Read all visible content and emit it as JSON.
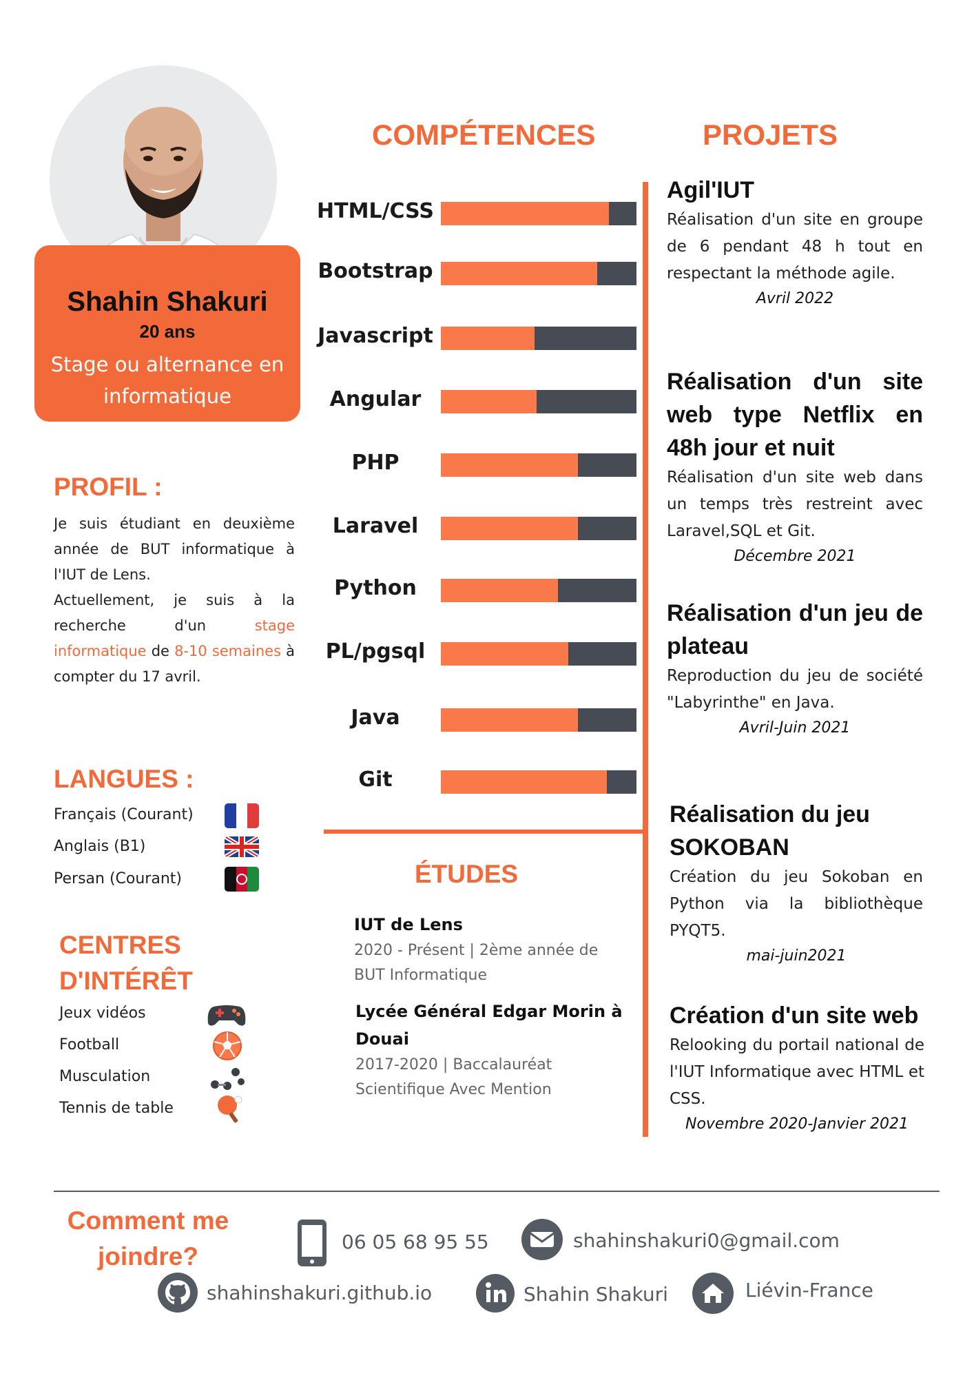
{
  "identity": {
    "name": "Shahin Shakuri",
    "age": "20 ans",
    "goal": "Stage ou alternance en informatique"
  },
  "profil": {
    "title": "PROFIL :",
    "text_1": "Je suis étudiant en deuxième année de BUT informatique à l'IUT de Lens.",
    "text_2a": "Actuellement, je suis à la recherche d'un ",
    "text_2b": "stage informatique",
    "text_2c": " de ",
    "text_2d": "8-10 semaines",
    "text_2e": " à compter du 17 avril."
  },
  "langues": {
    "title": "LANGUES :",
    "items": [
      {
        "label": "Français (Courant)",
        "flag": "france-flag-icon"
      },
      {
        "label": "Anglais (B1)",
        "flag": "uk-flag-icon"
      },
      {
        "label": "Persan (Courant)",
        "flag": "afghanistan-flag-icon"
      }
    ]
  },
  "interets": {
    "title_line1": "CENTRES",
    "title_line2": "D'INTÉRÊT",
    "items": [
      {
        "label": "Jeux vidéos",
        "icon": "gamepad-icon"
      },
      {
        "label": "Football",
        "icon": "football-icon"
      },
      {
        "label": "Musculation",
        "icon": "dumbbell-icon"
      },
      {
        "label": "Tennis de table",
        "icon": "ping-pong-icon"
      }
    ]
  },
  "competences": {
    "title": "COMPÉTENCES",
    "skills": [
      {
        "name": "HTML/CSS",
        "level": 0.86
      },
      {
        "name": "Bootstrap",
        "level": 0.8
      },
      {
        "name": "Javascript",
        "level": 0.48
      },
      {
        "name": "Angular",
        "level": 0.49
      },
      {
        "name": "PHP",
        "level": 0.7
      },
      {
        "name": "Laravel",
        "level": 0.7
      },
      {
        "name": "Python",
        "level": 0.6
      },
      {
        "name": "PL/pgsql",
        "level": 0.65
      },
      {
        "name": "Java",
        "level": 0.7
      },
      {
        "name": "Git",
        "level": 0.85
      }
    ]
  },
  "etudes": {
    "title": "ÉTUDES",
    "items": [
      {
        "school": "IUT de Lens",
        "detail": "2020 - Présent | 2ème année de BUT Informatique"
      },
      {
        "school": "Lycée Général  Edgar Morin à Douai",
        "detail": "2017-2020 | Baccalauréat Scientifique Avec Mention"
      }
    ]
  },
  "projets": {
    "title": "PROJETS",
    "items": [
      {
        "title": "Agil'IUT",
        "desc": "Réalisation d'un site en groupe de 6 pendant 48 h tout en respectant la méthode agile.",
        "date": "Avril 2022"
      },
      {
        "title": "Réalisation d'un site web type Netflix en 48h jour et nuit",
        "desc": "Réalisation d'un site web dans un temps très restreint avec Laravel,SQL et Git.",
        "date": "Décembre 2021"
      },
      {
        "title": "Réalisation d'un jeu de plateau",
        "desc": "Reproduction du jeu de société \"Labyrinthe\" en Java.",
        "date": "Avril-Juin 2021"
      },
      {
        "title": "Réalisation du jeu SOKOBAN",
        "desc": "Création du jeu Sokoban en Python via la bibliothèque PYQT5.",
        "date": "mai-juin2021"
      },
      {
        "title": "Création d'un site web",
        "desc": "Relooking du portail national de l'IUT Informatique avec HTML et CSS.",
        "date": "Novembre 2020-Janvier 2021"
      }
    ]
  },
  "contact": {
    "title_line1": "Comment me",
    "title_line2": "joindre?",
    "phone": "06 05 68 95 55",
    "email": "shahinshakuri0@gmail.com",
    "github": "shahinshakuri.github.io",
    "linkedin": "Shahin Shakuri",
    "location": "Liévin-France"
  },
  "colors": {
    "accent": "#f26a3a",
    "bar_fill": "#f9794a",
    "bar_bg": "#474c54",
    "icon_gray": "#555b63"
  }
}
